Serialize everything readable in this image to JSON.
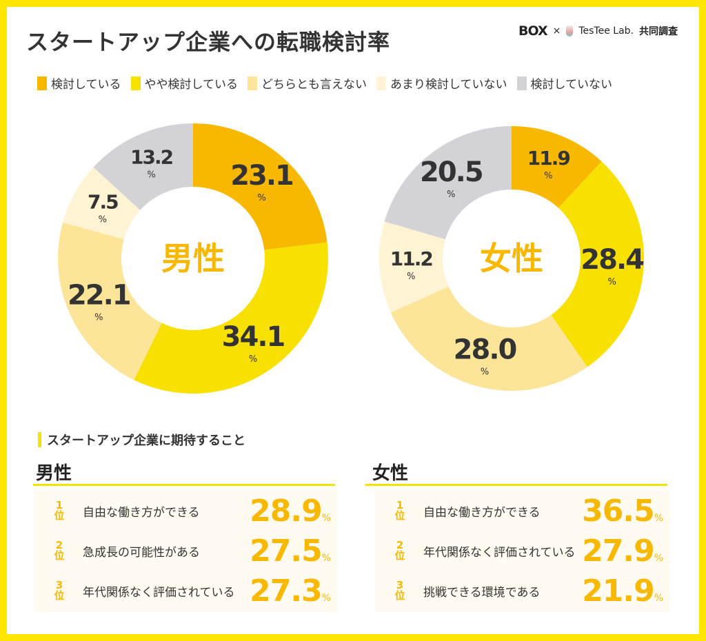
{
  "title": "スタートアップ企業への転職検討率",
  "credit": {
    "box": "BOX",
    "times": "×",
    "lab": "TesTee Lab.",
    "joint": "共同調査"
  },
  "chart_data": [
    {
      "type": "pie",
      "donut": true,
      "center_label": "男性",
      "categories": [
        "検討している",
        "やや検討している",
        "どちらとも言えない",
        "あまり検討していない",
        "検討していない"
      ],
      "values": [
        23.1,
        34.1,
        22.1,
        7.5,
        13.2
      ],
      "unit": "%"
    },
    {
      "type": "pie",
      "donut": true,
      "center_label": "女性",
      "categories": [
        "検討している",
        "やや検討している",
        "どちらとも言えない",
        "あまり検討していない",
        "検討していない"
      ],
      "values": [
        11.9,
        28.4,
        28.0,
        11.2,
        20.5
      ],
      "unit": "%"
    }
  ],
  "legend": [
    {
      "label": "検討している",
      "color": "#F9B800"
    },
    {
      "label": "やや検討している",
      "color": "#F8E000"
    },
    {
      "label": "どちらとも言えない",
      "color": "#FCE598"
    },
    {
      "label": "あまり検討していない",
      "color": "#FEF3D2"
    },
    {
      "label": "検討していない",
      "color": "#D3D2D6"
    }
  ],
  "section_title": "スタートアップ企業に期待すること",
  "rank_suffix": "位",
  "pct": "%",
  "male": {
    "label": "男性",
    "items": [
      {
        "rank": "1",
        "text": "自由な働き方ができる",
        "value": "28.9"
      },
      {
        "rank": "2",
        "text": "急成長の可能性がある",
        "value": "27.5"
      },
      {
        "rank": "3",
        "text": "年代関係なく評価されている",
        "value": "27.3"
      }
    ]
  },
  "female": {
    "label": "女性",
    "items": [
      {
        "rank": "1",
        "text": "自由な働き方ができる",
        "value": "36.5"
      },
      {
        "rank": "2",
        "text": "年代関係なく評価されている",
        "value": "27.9"
      },
      {
        "rank": "3",
        "text": "挑戦できる環境である",
        "value": "21.9"
      }
    ]
  }
}
